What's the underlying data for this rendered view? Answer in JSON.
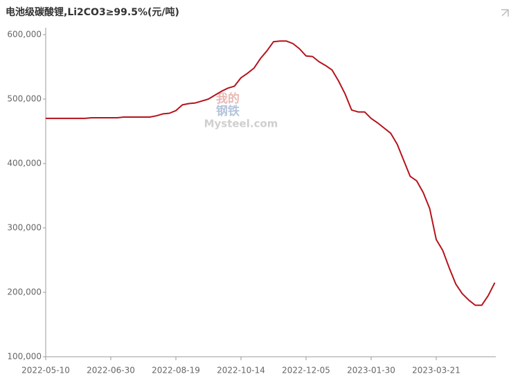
{
  "chart_data": {
    "type": "line",
    "title": "电池级碳酸锂,Li2CO3≥99.5%(元/吨)",
    "watermark": {
      "top": "我的",
      "middle": "钢铁",
      "bottom": "Mysteel.com"
    },
    "categories": [
      "2022-05-10",
      null,
      null,
      null,
      null,
      null,
      null,
      null,
      null,
      null,
      "2022-06-30",
      null,
      null,
      null,
      null,
      null,
      null,
      null,
      null,
      null,
      "2022-08-19",
      null,
      null,
      null,
      null,
      null,
      null,
      null,
      null,
      null,
      "2022-10-14",
      null,
      null,
      null,
      null,
      null,
      null,
      null,
      null,
      null,
      "2022-12-05",
      null,
      null,
      null,
      null,
      null,
      null,
      null,
      null,
      null,
      "2023-01-30",
      null,
      null,
      null,
      null,
      null,
      null,
      null,
      null,
      null,
      "2023-03-21",
      null,
      null,
      null,
      null,
      null,
      null,
      null,
      null,
      null
    ],
    "series": [
      {
        "name": "电池级碳酸锂",
        "color": "#b5121b",
        "values": [
          470000,
          470000,
          470000,
          470000,
          470000,
          470000,
          470000,
          471000,
          471000,
          471000,
          471000,
          471000,
          472000,
          472000,
          472000,
          472000,
          472000,
          474000,
          477000,
          478000,
          482000,
          491000,
          493000,
          494000,
          497000,
          500000,
          506000,
          512000,
          517000,
          520000,
          533000,
          540000,
          548000,
          563000,
          575000,
          589000,
          590000,
          590000,
          586000,
          578000,
          567000,
          566000,
          558000,
          552000,
          545000,
          528000,
          508000,
          483000,
          480000,
          480000,
          470000,
          463000,
          455000,
          447000,
          430000,
          405000,
          380000,
          373000,
          355000,
          330000,
          282000,
          265000,
          238000,
          213000,
          198000,
          188000,
          180000,
          180000,
          195000,
          215000
        ]
      }
    ],
    "ylim": [
      100000,
      600000
    ],
    "yticks": [
      {
        "value": 100000,
        "label": "100,000"
      },
      {
        "value": 200000,
        "label": "200,000"
      },
      {
        "value": 300000,
        "label": "300,000"
      },
      {
        "value": 400000,
        "label": "400,000"
      },
      {
        "value": 500000,
        "label": "500,000"
      },
      {
        "value": 600000,
        "label": "600,000"
      }
    ],
    "grid": false
  }
}
